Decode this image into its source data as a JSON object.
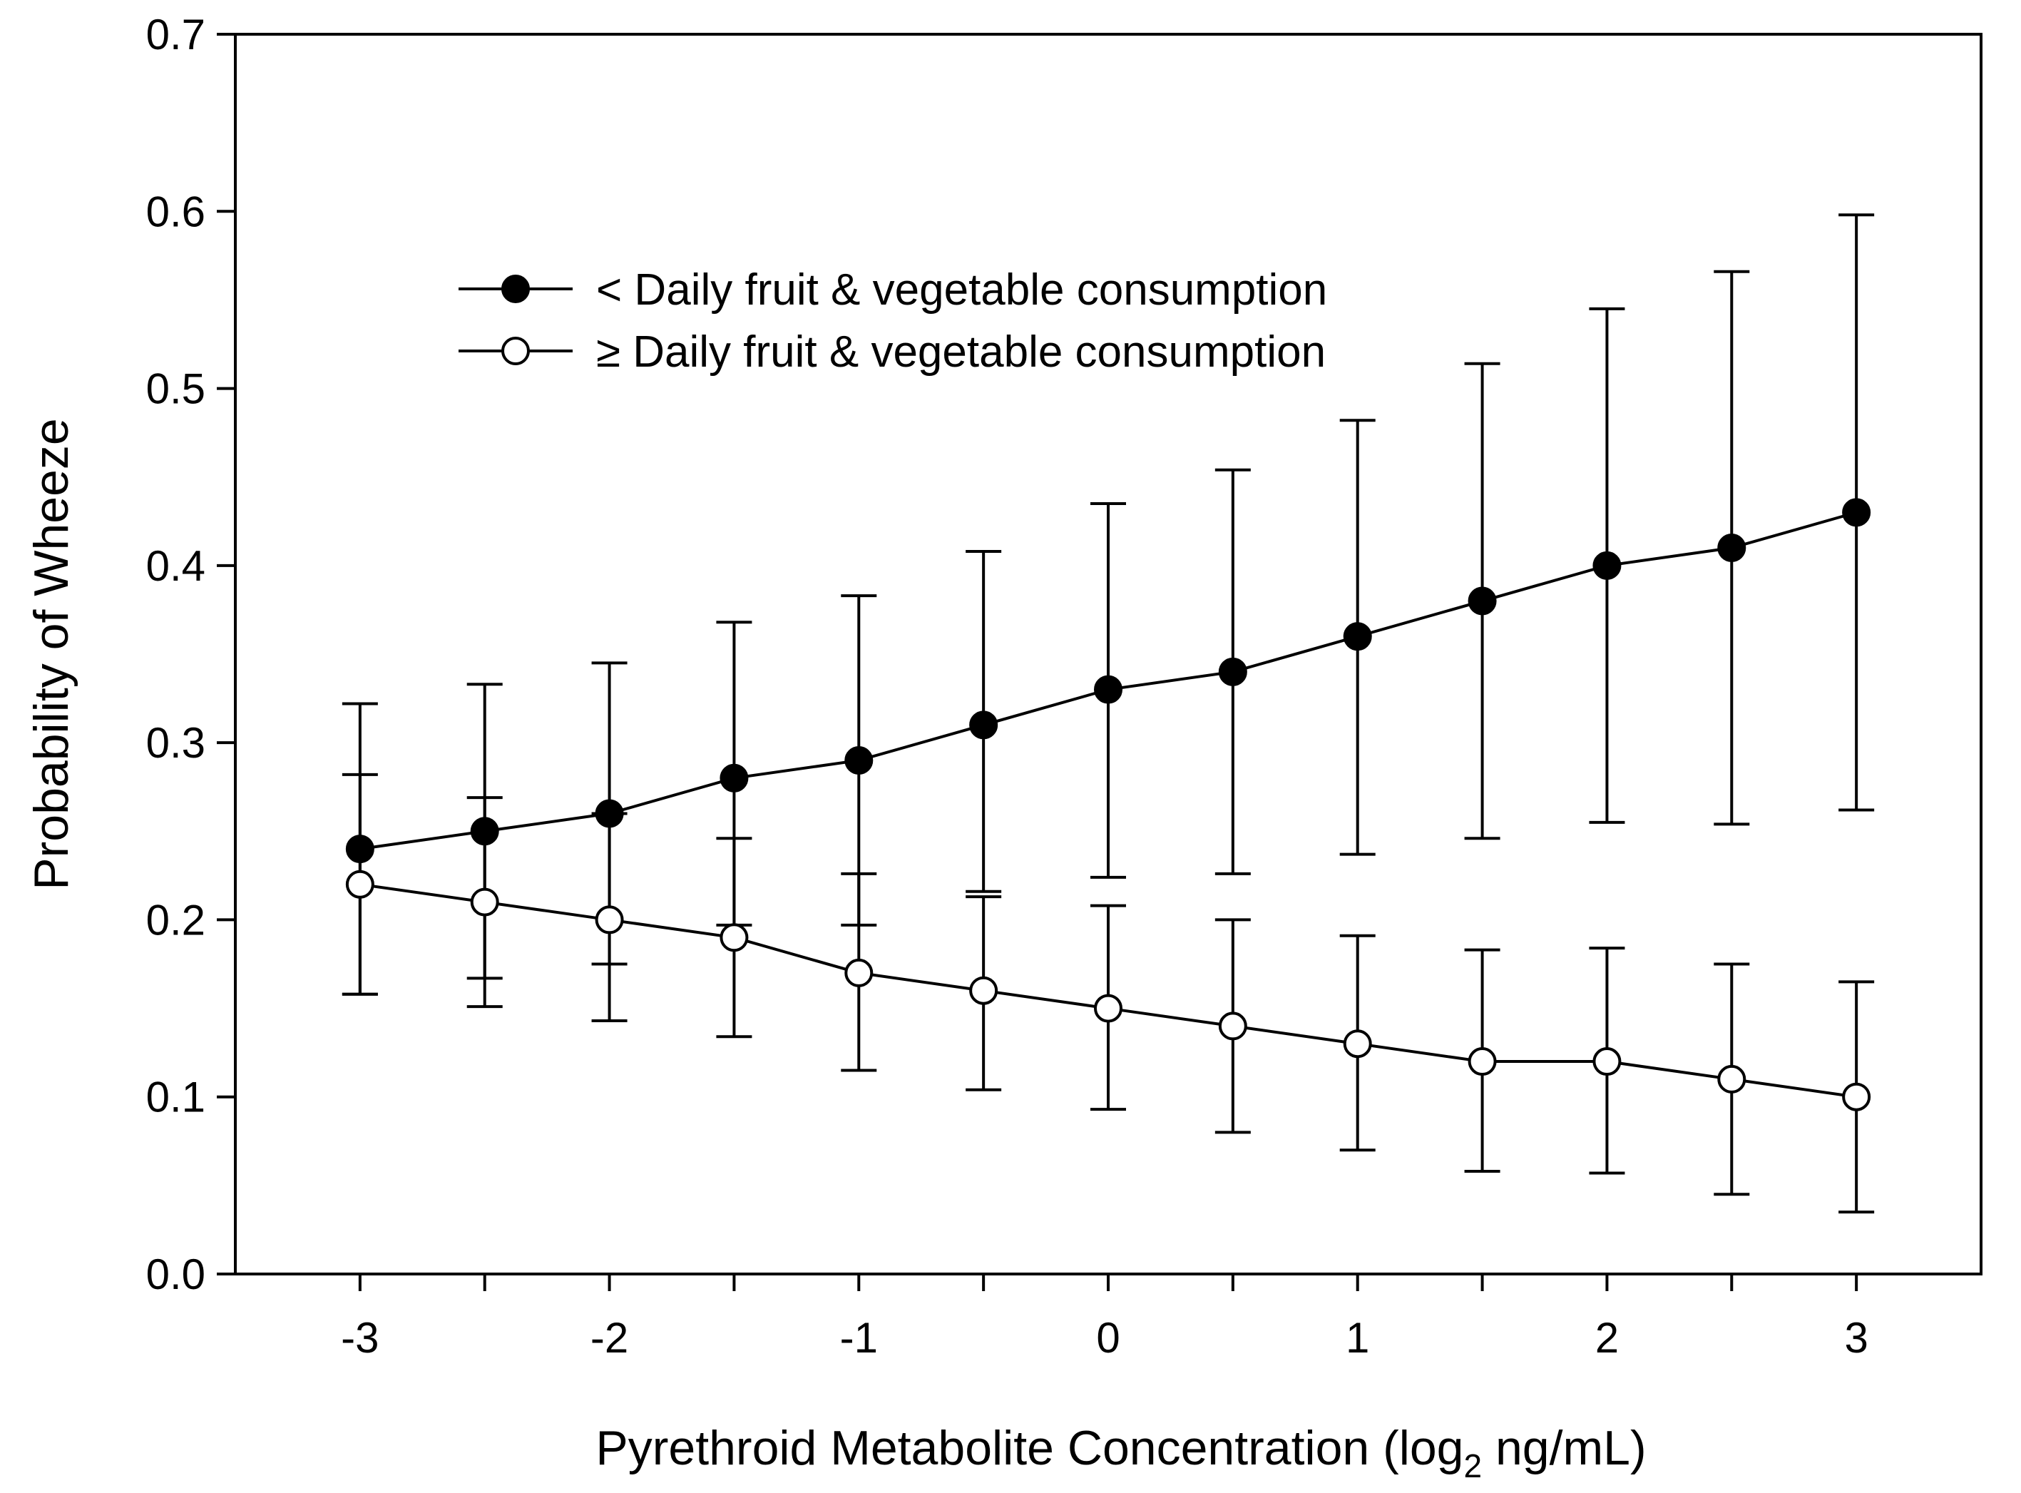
{
  "chart_data": {
    "type": "line",
    "xlabel_main": "Pyrethroid Metabolite Concentration (log",
    "xlabel_sub": "2",
    "xlabel_tail": " ng/mL)",
    "ylabel": "Probability of Wheeze",
    "xlim": [
      -3.5,
      3.5
    ],
    "ylim": [
      0,
      0.7
    ],
    "xticks": [
      -3,
      -2,
      -1,
      0,
      1,
      2,
      3
    ],
    "xtick_labels": [
      "-3",
      "-2",
      "-1",
      "0",
      "1",
      "2",
      "3"
    ],
    "yticks": [
      0,
      0.1,
      0.2,
      0.3,
      0.4,
      0.5,
      0.6,
      0.7
    ],
    "ytick_labels": [
      "0.0",
      "0.1",
      "0.2",
      "0.3",
      "0.4",
      "0.5",
      "0.6",
      "0.7"
    ],
    "grid": false,
    "legend_position": "upper-left",
    "x": [
      -3,
      -2.5,
      -2,
      -1.5,
      -1,
      -0.5,
      0,
      0.5,
      1,
      1.5,
      2,
      2.5,
      3
    ],
    "series": [
      {
        "name": "< Daily fruit & vegetable consumption",
        "marker": "filled-circle",
        "values": [
          0.24,
          0.25,
          0.26,
          0.28,
          0.29,
          0.31,
          0.33,
          0.34,
          0.36,
          0.38,
          0.4,
          0.41,
          0.43
        ],
        "lower": [
          0.158,
          0.167,
          0.175,
          0.197,
          0.197,
          0.216,
          0.224,
          0.226,
          0.237,
          0.246,
          0.255,
          0.254,
          0.262
        ],
        "upper": [
          0.322,
          0.333,
          0.345,
          0.368,
          0.383,
          0.408,
          0.435,
          0.454,
          0.482,
          0.514,
          0.545,
          0.566,
          0.598
        ]
      },
      {
        "name": "≥ Daily fruit & vegetable consumption",
        "marker": "open-circle",
        "values": [
          0.22,
          0.21,
          0.2,
          0.19,
          0.17,
          0.16,
          0.15,
          0.14,
          0.13,
          0.12,
          0.12,
          0.11,
          0.1
        ],
        "lower": [
          0.158,
          0.151,
          0.143,
          0.134,
          0.115,
          0.104,
          0.093,
          0.08,
          0.07,
          0.058,
          0.057,
          0.045,
          0.035
        ],
        "upper": [
          0.282,
          0.269,
          0.26,
          0.246,
          0.226,
          0.213,
          0.208,
          0.2,
          0.191,
          0.183,
          0.184,
          0.175,
          0.165
        ]
      }
    ]
  }
}
